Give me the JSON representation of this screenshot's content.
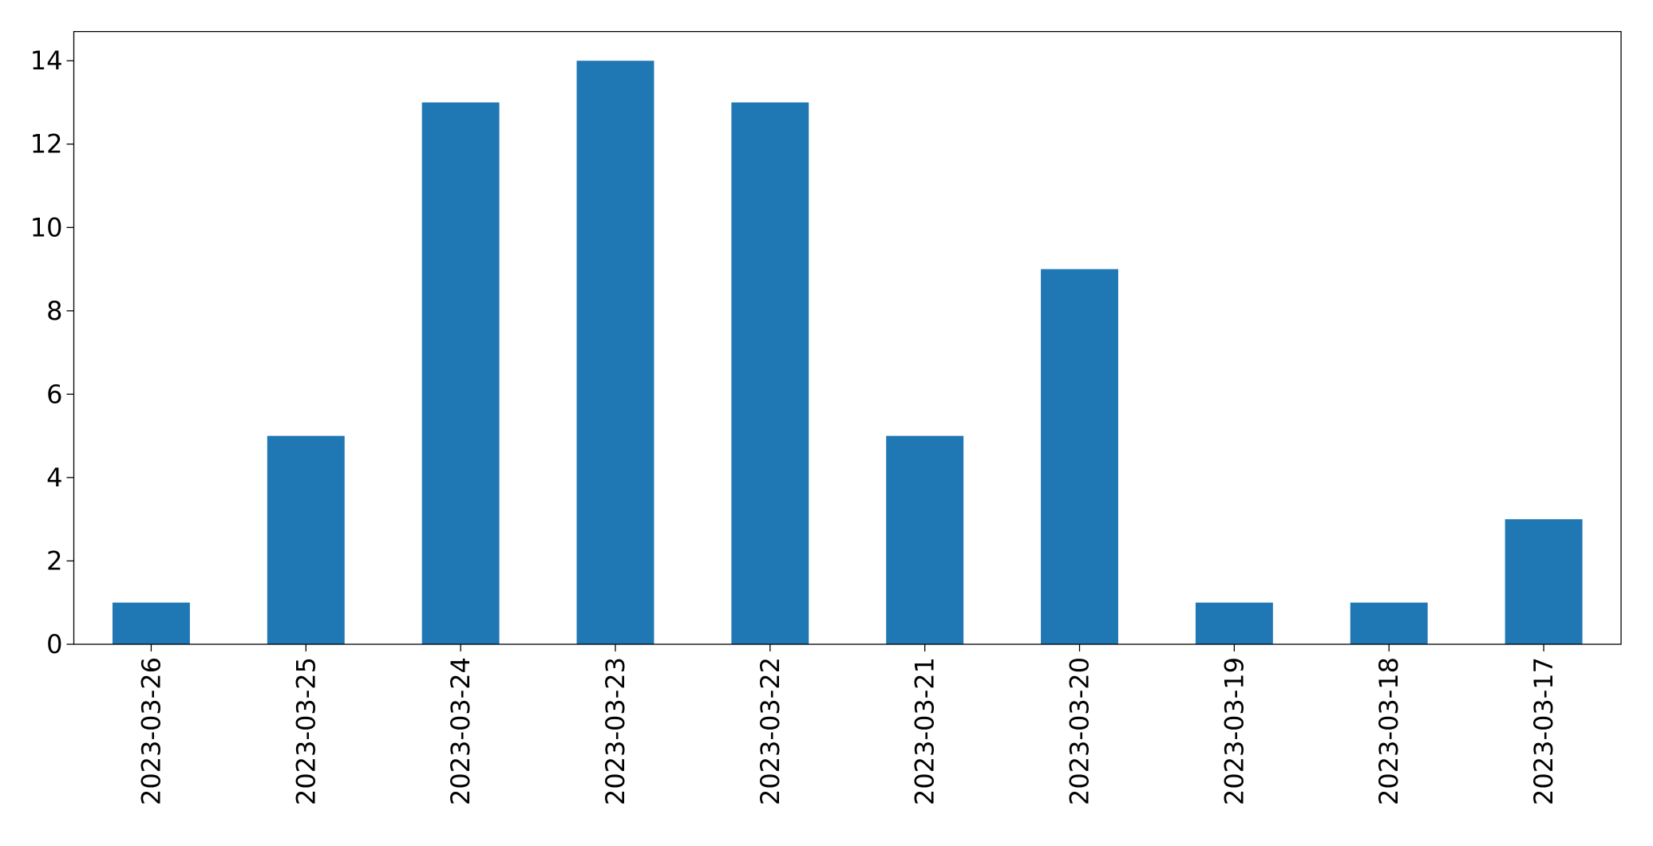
{
  "chart_data": {
    "type": "bar",
    "categories": [
      "2023-03-26",
      "2023-03-25",
      "2023-03-24",
      "2023-03-23",
      "2023-03-22",
      "2023-03-21",
      "2023-03-20",
      "2023-03-19",
      "2023-03-18",
      "2023-03-17"
    ],
    "values": [
      1,
      5,
      13,
      14,
      13,
      5,
      9,
      1,
      1,
      3
    ],
    "color": "#1f77b4",
    "ylim": [
      0,
      14.7
    ],
    "yticks": [
      0,
      2,
      4,
      6,
      8,
      10,
      12,
      14
    ],
    "grid": false
  }
}
